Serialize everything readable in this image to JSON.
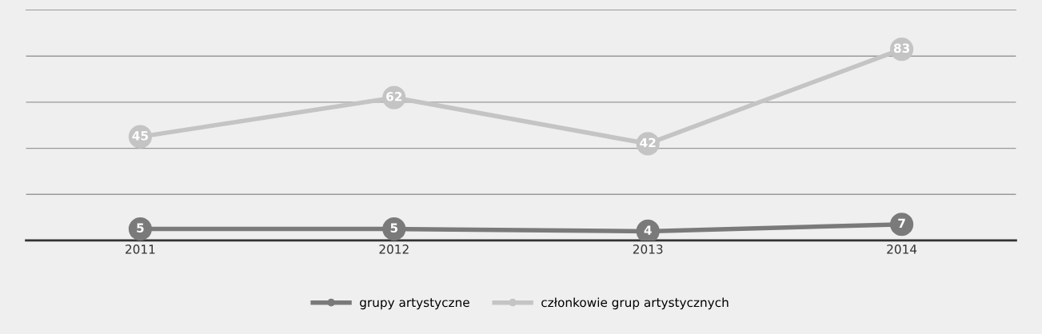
{
  "chart_data": {
    "type": "line",
    "categories": [
      "2011",
      "2012",
      "2013",
      "2014"
    ],
    "series": [
      {
        "name": "grupy artystyczne",
        "color": "#7a7a7a",
        "values": [
          5,
          5,
          4,
          7
        ]
      },
      {
        "name": "członkowie grup artystycznych",
        "color": "#c4c4c4",
        "values": [
          45,
          62,
          42,
          83
        ]
      }
    ],
    "ylim": [
      0,
      100
    ],
    "yticks": [
      {
        "value": 0,
        "label": null
      },
      {
        "value": 20,
        "label": null
      },
      {
        "value": 40,
        "label": null
      },
      {
        "value": 60,
        "label": null
      },
      {
        "value": 80,
        "label": null
      }
    ],
    "tick_labels": "x",
    "grid": "y",
    "legend": "bottom",
    "marker": "circle",
    "line_style": "solid",
    "data_labels": true
  }
}
